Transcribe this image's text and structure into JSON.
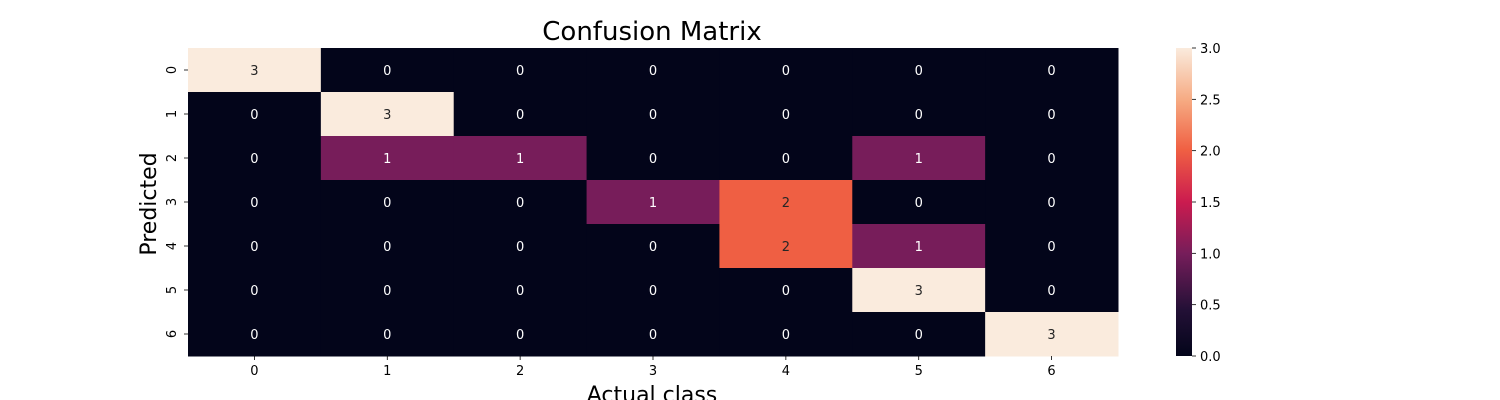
{
  "chart_data": {
    "type": "heatmap",
    "title": "Confusion Matrix",
    "xlabel": "Actual class",
    "ylabel": "Predicted",
    "x_categories": [
      "0",
      "1",
      "2",
      "3",
      "4",
      "5",
      "6"
    ],
    "y_categories": [
      "0",
      "1",
      "2",
      "3",
      "4",
      "5",
      "6"
    ],
    "values": [
      [
        3,
        0,
        0,
        0,
        0,
        0,
        0
      ],
      [
        0,
        3,
        0,
        0,
        0,
        0,
        0
      ],
      [
        0,
        1,
        1,
        0,
        0,
        1,
        0
      ],
      [
        0,
        0,
        0,
        1,
        2,
        0,
        0
      ],
      [
        0,
        0,
        0,
        0,
        2,
        1,
        0
      ],
      [
        0,
        0,
        0,
        0,
        0,
        3,
        0
      ],
      [
        0,
        0,
        0,
        0,
        0,
        0,
        3
      ]
    ],
    "colorbar": {
      "min": 0,
      "max": 3,
      "ticks": [
        "0.0",
        "0.5",
        "1.0",
        "1.5",
        "2.0",
        "2.5",
        "3.0"
      ],
      "colormap": "rocket"
    },
    "annotations": true,
    "grid": false
  }
}
